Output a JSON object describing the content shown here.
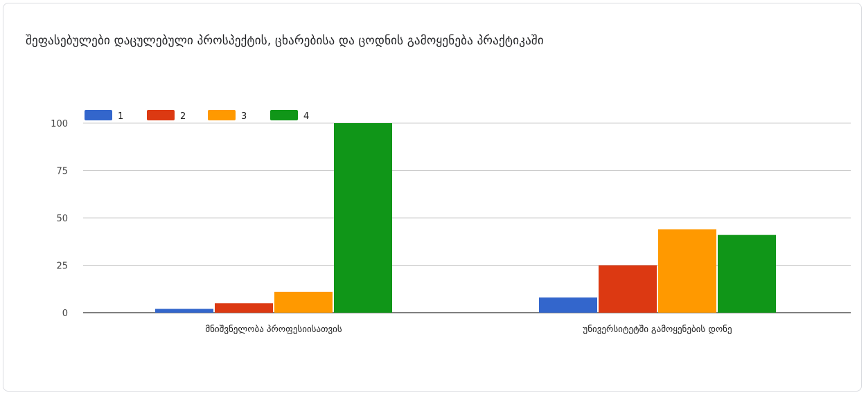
{
  "chart_data": {
    "type": "bar",
    "title": "შეფასებულები დაცულებული პროსპექტის, ცხარებისა და ცოდნის გამოყენება პრაქტიკაში",
    "categories": [
      "მნიშვნელობა პროფესიისათვის",
      "უნივერსიტეტში გამოყენების დონე"
    ],
    "series": [
      {
        "name": "1",
        "values": [
          2,
          8
        ],
        "color": "#3366cc"
      },
      {
        "name": "2",
        "values": [
          5,
          25
        ],
        "color": "#dc3912"
      },
      {
        "name": "3",
        "values": [
          11,
          44
        ],
        "color": "#ff9900"
      },
      {
        "name": "4",
        "values": [
          100,
          41
        ],
        "color": "#109618"
      }
    ],
    "yticks": [
      0,
      25,
      50,
      75,
      100
    ],
    "ylim": [
      0,
      100
    ],
    "legend_position": "top-left",
    "grid": true
  }
}
